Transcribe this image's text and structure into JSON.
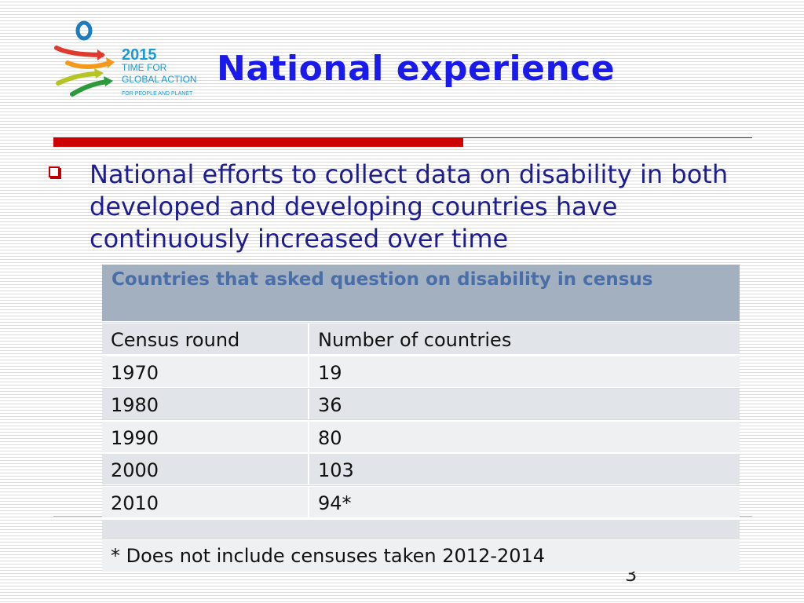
{
  "logo": {
    "text": [
      "2015",
      "TIME FOR",
      "GLOBAL ACTION",
      "FOR PEOPLE AND PLANET"
    ],
    "colors": [
      "#1a7bbf",
      "#e03a2f",
      "#f39a1c",
      "#b5c526",
      "#2a9a3a"
    ]
  },
  "title": "National experience",
  "bullet": "National efforts to collect data on disability in both developed and developing countries have continuously increased over time",
  "table": {
    "caption": "Countries that asked question on disability in census",
    "headers": [
      "Census round",
      "Number of countries"
    ],
    "rows": [
      [
        "1970",
        "19"
      ],
      [
        "1980",
        "36"
      ],
      [
        "1990",
        "80"
      ],
      [
        "2000",
        "103"
      ],
      [
        "2010",
        "94*"
      ]
    ],
    "footnote": "* Does not include censuses taken 2012-2014"
  },
  "page_number": "3",
  "colors": {
    "title": "#1a1aeb",
    "accent_bar": "#cc0000",
    "body_text": "#1d1d8f",
    "table_header": "#a3b0bf"
  }
}
